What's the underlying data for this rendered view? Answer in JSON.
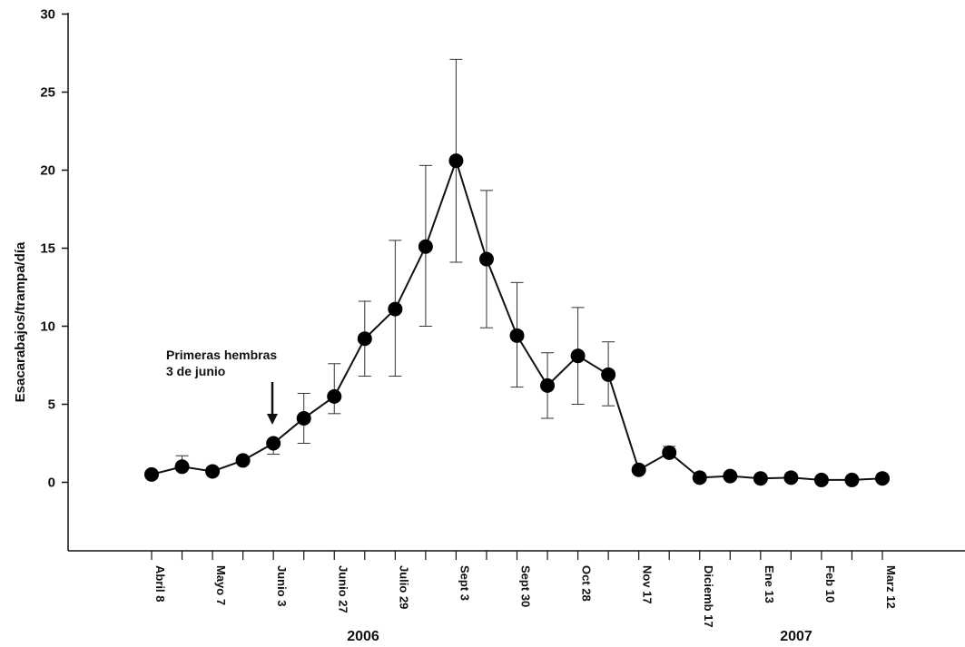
{
  "chart_data": {
    "type": "line",
    "title": "",
    "xlabel": "",
    "ylabel": "Esacarabajos/trampa/día",
    "ylim": [
      -4,
      30
    ],
    "yticks": [
      0,
      5,
      10,
      15,
      20,
      25,
      30
    ],
    "grid": false,
    "x_tick_labels": [
      "Abril 8",
      "Mayo 7",
      "Junio 3",
      "Junio 27",
      "Julio 29",
      "Sept 3",
      "Sept 30",
      "Oct 28",
      "Nov 17",
      "Diciemb 17",
      "Ene 13",
      "Feb 10",
      "Marz 12"
    ],
    "year_labels": [
      "2006",
      "2007"
    ],
    "annotation": {
      "lines": [
        "Primeras hembras",
        "3 de junio"
      ]
    },
    "series": [
      {
        "values": [
          0.5,
          1.0,
          0.7,
          1.4,
          2.5,
          4.1,
          5.5,
          9.2,
          11.1,
          15.1,
          20.6,
          14.3,
          9.4,
          6.2,
          8.1,
          6.9,
          0.8,
          1.9,
          0.3,
          0.4,
          0.25,
          0.3,
          0.15,
          0.15,
          0.25
        ],
        "error_low": [
          null,
          0.9,
          null,
          null,
          1.8,
          2.5,
          4.4,
          6.8,
          6.8,
          10.0,
          14.1,
          9.9,
          6.1,
          4.1,
          5.0,
          4.9,
          null,
          null,
          null,
          null,
          null,
          null,
          null,
          null,
          null
        ],
        "error_high": [
          null,
          1.7,
          null,
          null,
          null,
          5.7,
          7.6,
          11.6,
          15.5,
          20.3,
          27.1,
          18.7,
          12.8,
          8.3,
          11.2,
          9.0,
          null,
          2.3,
          null,
          null,
          null,
          null,
          null,
          null,
          null
        ]
      }
    ]
  }
}
